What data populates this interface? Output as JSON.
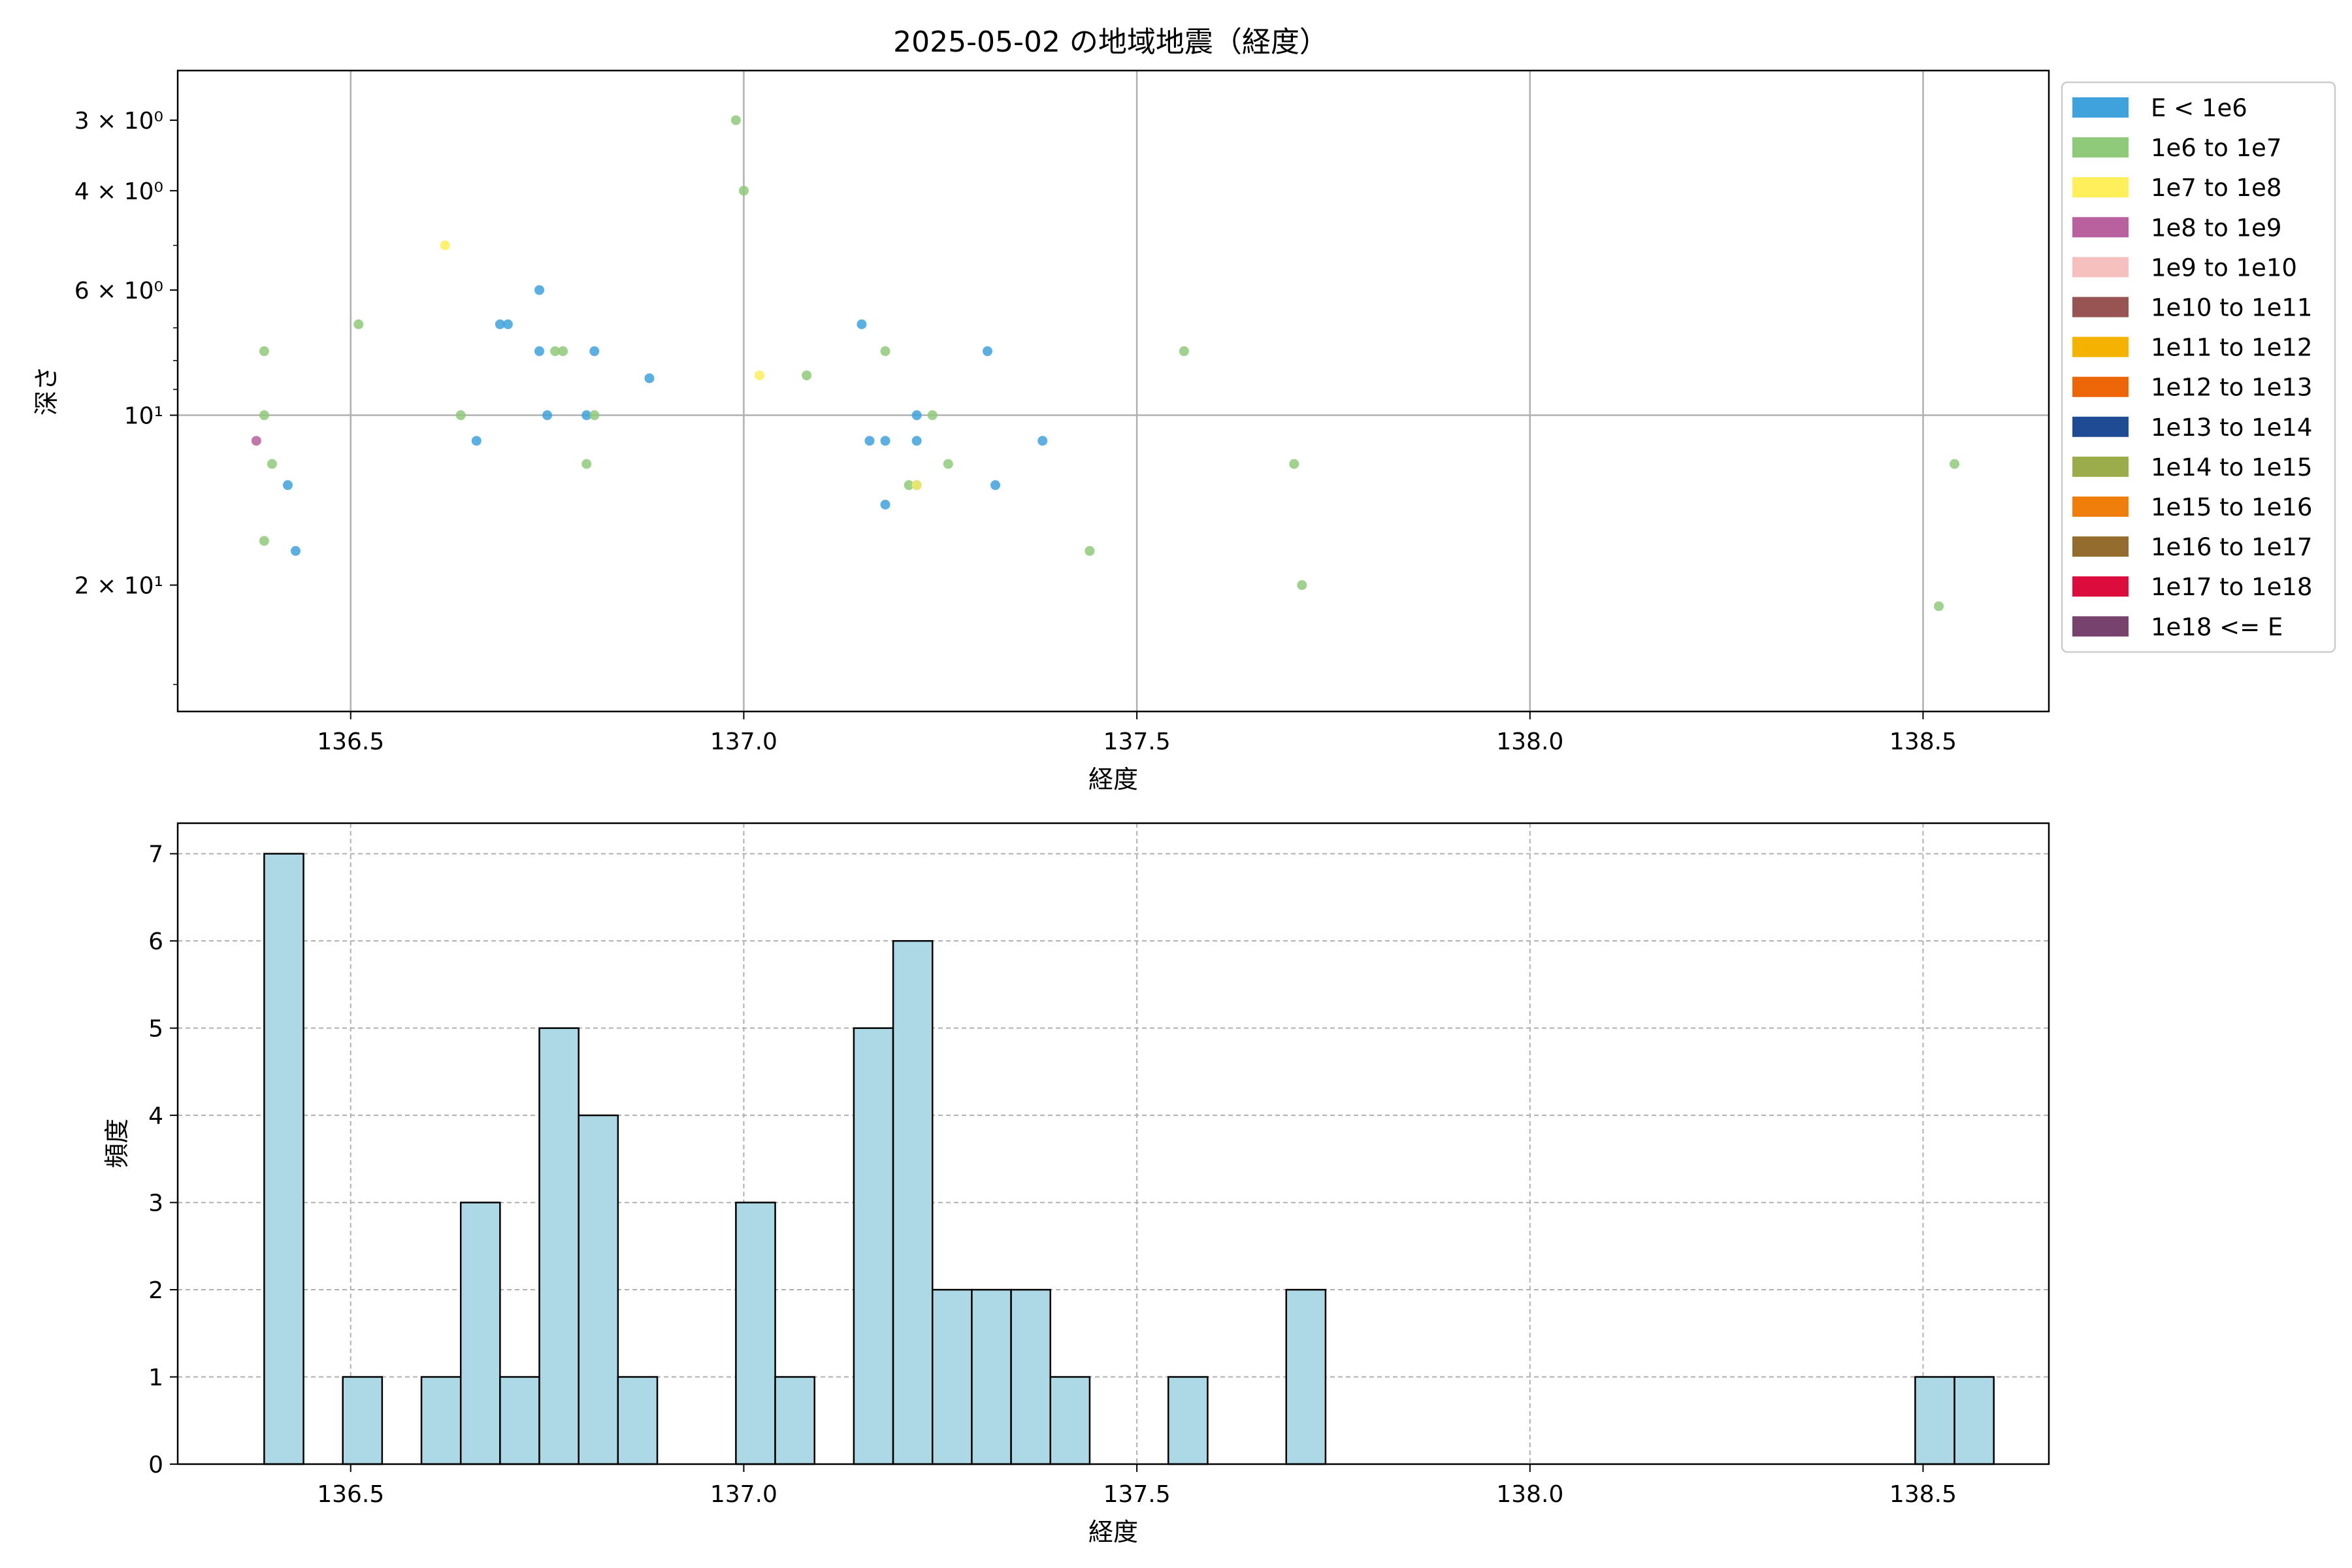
{
  "figure": {
    "title": "2025-05-02 の地域地震（経度）"
  },
  "chart_data": [
    {
      "type": "scatter",
      "xlabel": "経度",
      "ylabel": "深さ",
      "xlim": [
        136.28,
        138.66
      ],
      "ylim": [
        33.5,
        2.45
      ],
      "y_scale": "log",
      "y_inverted": true,
      "x_ticks": [
        136.5,
        137.0,
        137.5,
        138.0,
        138.5
      ],
      "x_tick_labels": [
        "136.5",
        "137.0",
        "137.5",
        "138.0",
        "138.5"
      ],
      "y_ticks": [
        3,
        4,
        6,
        10,
        20
      ],
      "y_tick_labels": [
        "3 × 10⁰",
        "4 × 10⁰",
        "6 × 10⁰",
        "10¹",
        "2 × 10¹"
      ],
      "y_minor_ticks": [
        5,
        7,
        8,
        9,
        30
      ],
      "grid": true,
      "legend_position": "outside-right",
      "legend": [
        {
          "label": "E < 1e6",
          "color": "#3fa2dc"
        },
        {
          "label": "1e6 to 1e7",
          "color": "#8fc97a"
        },
        {
          "label": "1e7 to 1e8",
          "color": "#ffef5a"
        },
        {
          "label": "1e8 to 1e9",
          "color": "#b9609f"
        },
        {
          "label": "1e9 to 1e10",
          "color": "#f5c0bd"
        },
        {
          "label": "1e10 to 1e11",
          "color": "#985452"
        },
        {
          "label": "1e11 to 1e12",
          "color": "#f5b300"
        },
        {
          "label": "1e12 to 1e13",
          "color": "#ed6506"
        },
        {
          "label": "1e13 to 1e14",
          "color": "#1e4b94"
        },
        {
          "label": "1e14 to 1e15",
          "color": "#9bad4a"
        },
        {
          "label": "1e15 to 1e16",
          "color": "#ef7e0b"
        },
        {
          "label": "1e16 to 1e17",
          "color": "#936c2e"
        },
        {
          "label": "1e17 to 1e18",
          "color": "#dc0d3c"
        },
        {
          "label": "1e18 <= E",
          "color": "#77426d"
        }
      ],
      "series": [
        {
          "class": 0,
          "points": [
            [
              136.42,
              13.3
            ],
            [
              136.43,
              17.4
            ],
            [
              136.66,
              11.1
            ],
            [
              136.69,
              6.9
            ],
            [
              136.7,
              6.9
            ],
            [
              136.74,
              6.0
            ],
            [
              136.74,
              7.7
            ],
            [
              136.75,
              10.0
            ],
            [
              136.8,
              10.0
            ],
            [
              136.81,
              7.7
            ],
            [
              136.88,
              8.6
            ],
            [
              137.15,
              6.9
            ],
            [
              137.16,
              11.1
            ],
            [
              137.18,
              11.1
            ],
            [
              137.18,
              14.4
            ],
            [
              137.22,
              10.0
            ],
            [
              137.22,
              11.1
            ],
            [
              137.22,
              13.3
            ],
            [
              137.31,
              7.7
            ],
            [
              137.32,
              13.3
            ],
            [
              137.38,
              11.1
            ]
          ]
        },
        {
          "class": 1,
          "points": [
            [
              136.39,
              16.7
            ],
            [
              136.39,
              7.7
            ],
            [
              136.39,
              10.0
            ],
            [
              136.4,
              12.2
            ],
            [
              136.51,
              6.9
            ],
            [
              136.64,
              10.0
            ],
            [
              136.76,
              7.7
            ],
            [
              136.77,
              7.7
            ],
            [
              136.8,
              12.2
            ],
            [
              136.81,
              10.0
            ],
            [
              136.99,
              3.0
            ],
            [
              137.0,
              4.0
            ],
            [
              137.08,
              8.5
            ],
            [
              137.18,
              7.7
            ],
            [
              137.21,
              13.3
            ],
            [
              137.24,
              10.0
            ],
            [
              137.26,
              12.2
            ],
            [
              137.44,
              17.4
            ],
            [
              137.56,
              7.7
            ],
            [
              137.7,
              12.2
            ],
            [
              137.71,
              20.0
            ],
            [
              138.52,
              21.8
            ],
            [
              138.54,
              12.2
            ]
          ]
        },
        {
          "class": 2,
          "points": [
            [
              136.62,
              5.0
            ],
            [
              137.02,
              8.5
            ],
            [
              137.22,
              13.3
            ]
          ]
        },
        {
          "class": 3,
          "points": [
            [
              136.38,
              11.1
            ]
          ]
        }
      ]
    },
    {
      "type": "bar",
      "xlabel": "経度",
      "ylabel": "頻度",
      "xlim": [
        136.28,
        138.66
      ],
      "ylim": [
        0,
        7.35
      ],
      "x_ticks": [
        136.5,
        137.0,
        137.5,
        138.0,
        138.5
      ],
      "x_tick_labels": [
        "136.5",
        "137.0",
        "137.5",
        "138.0",
        "138.5"
      ],
      "y_ticks": [
        0,
        1,
        2,
        3,
        4,
        5,
        6,
        7
      ],
      "y_tick_labels": [
        "0",
        "1",
        "2",
        "3",
        "4",
        "5",
        "6",
        "7"
      ],
      "grid": "dashed",
      "bar_color": "#add8e6",
      "bin_start": 136.39,
      "bin_width": 0.05,
      "values": [
        7,
        0,
        1,
        0,
        1,
        3,
        1,
        5,
        4,
        1,
        0,
        0,
        3,
        1,
        0,
        5,
        6,
        2,
        2,
        2,
        1,
        0,
        0,
        1,
        0,
        0,
        2,
        0,
        0,
        0,
        0,
        0,
        0,
        0,
        0,
        0,
        0,
        0,
        0,
        0,
        0,
        0,
        1,
        1
      ]
    }
  ]
}
